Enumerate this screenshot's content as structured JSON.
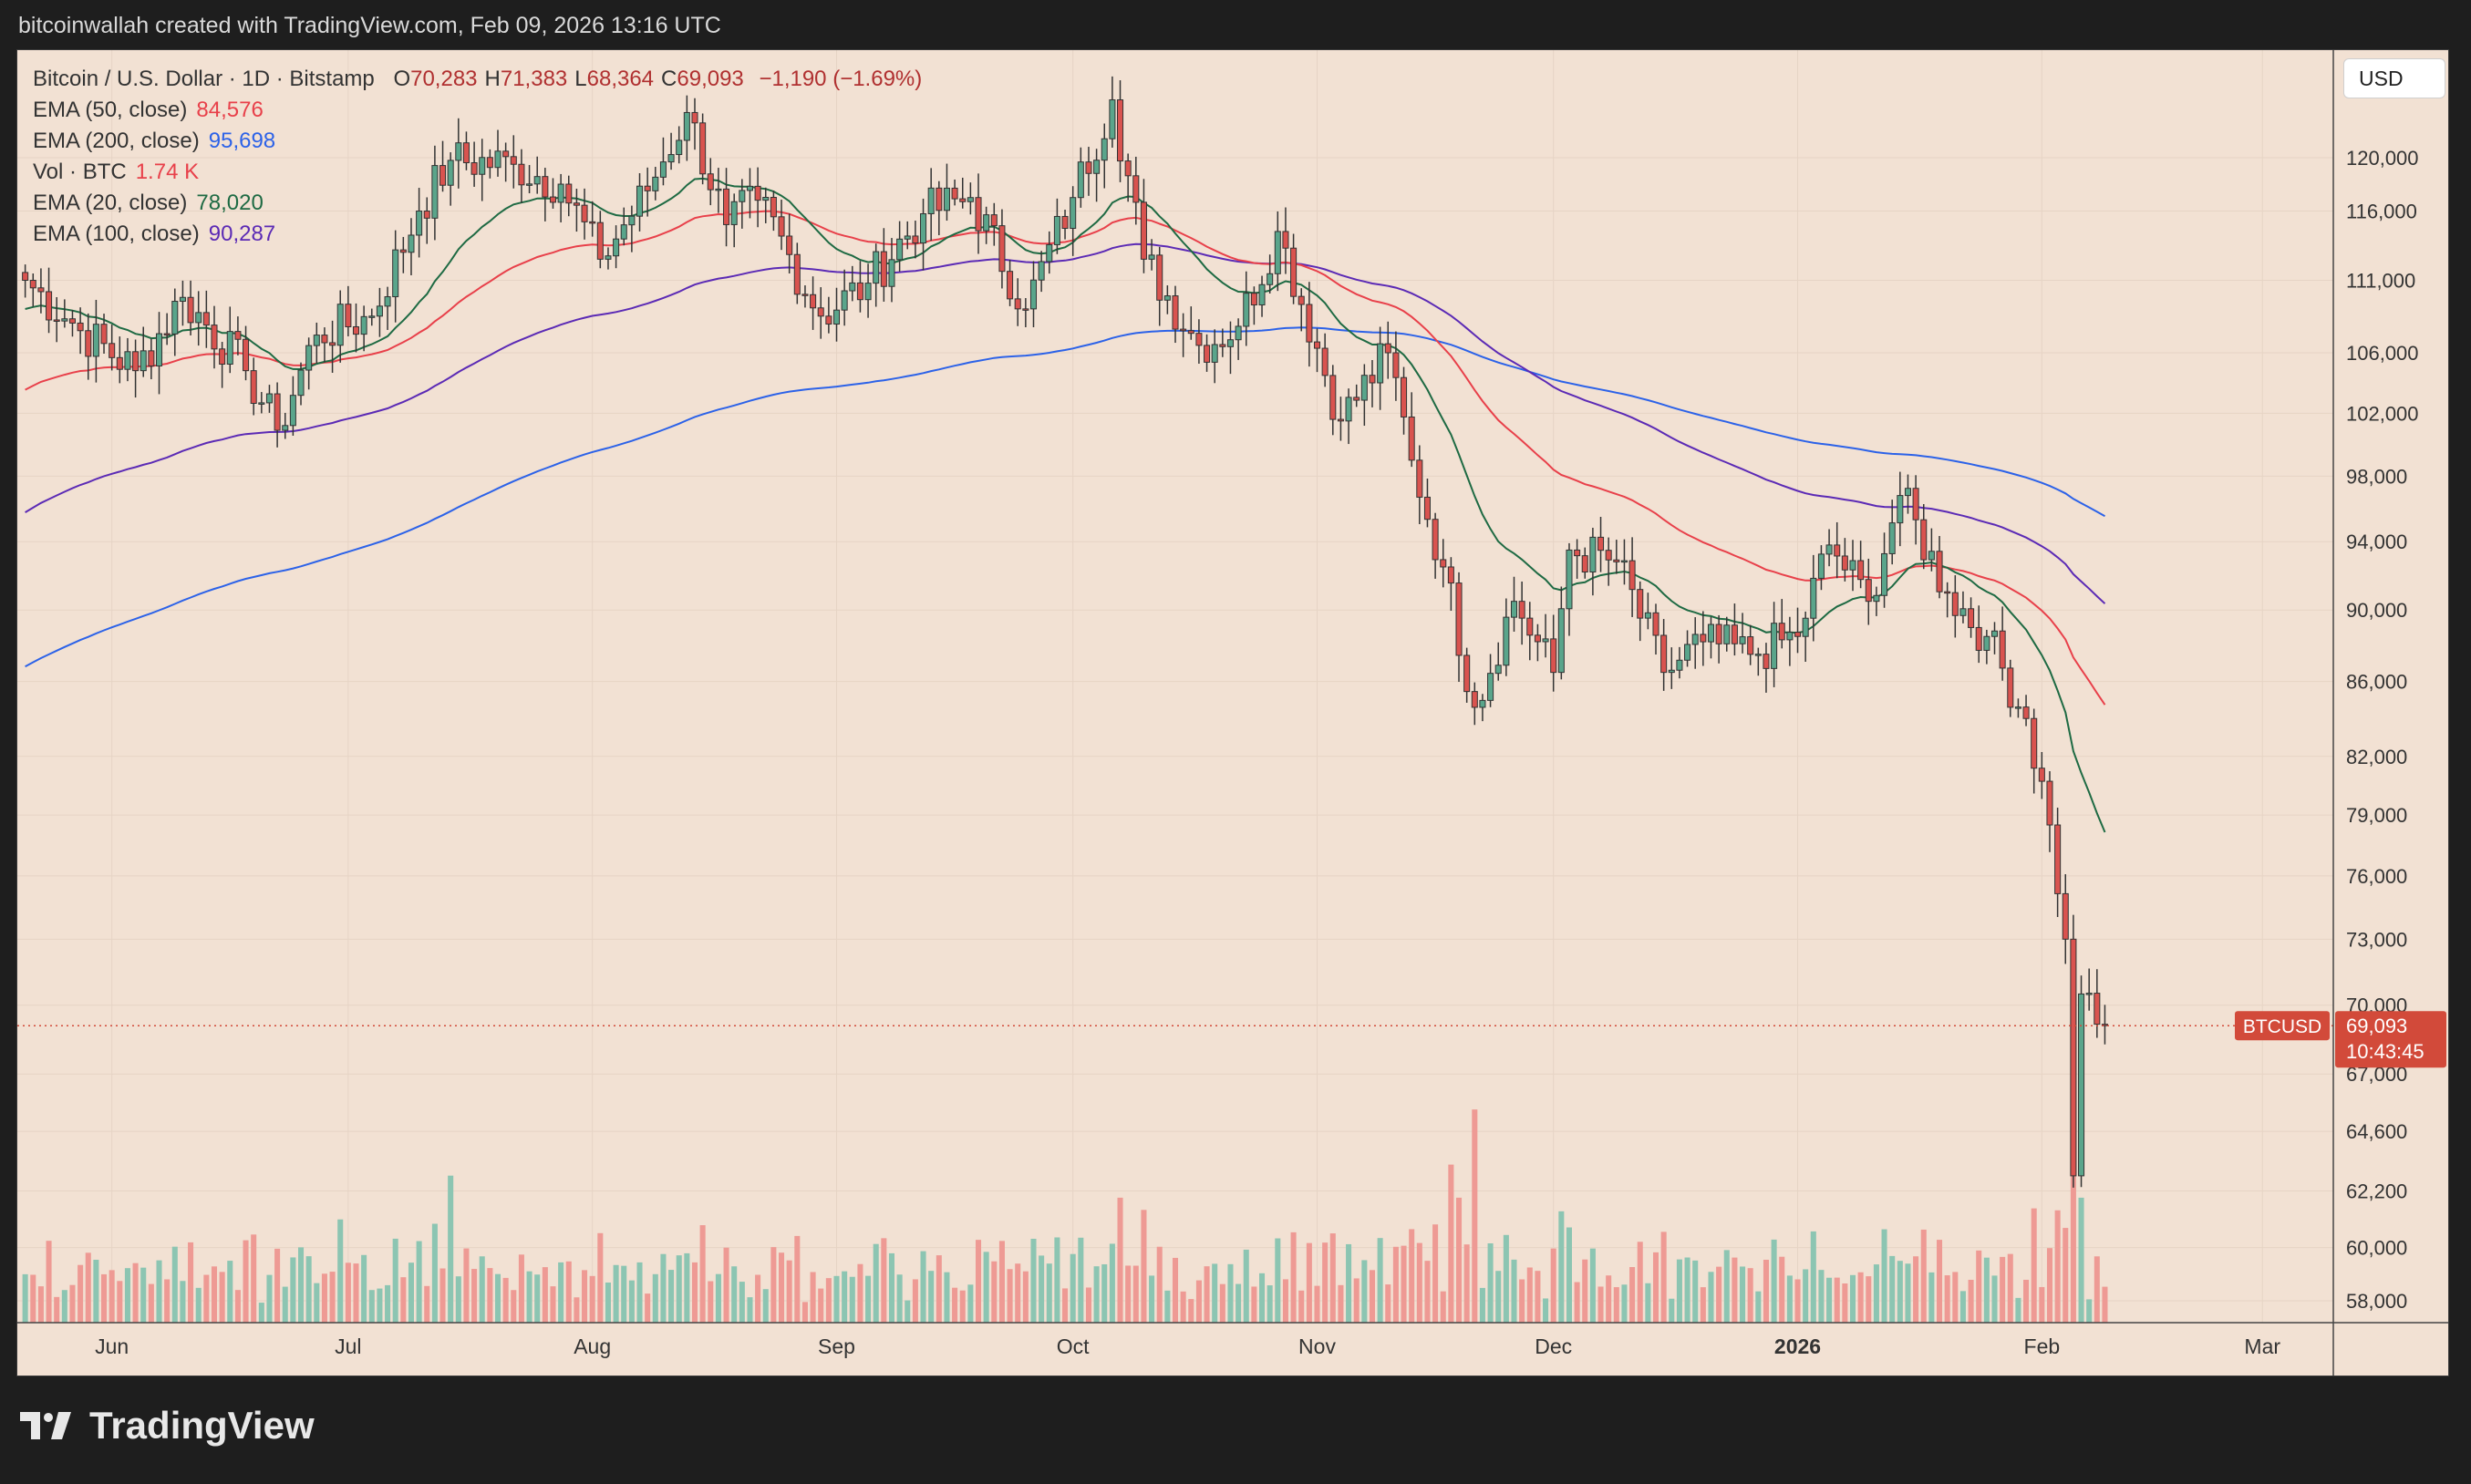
{
  "header": {
    "attribution": "bitcoinwallah created with TradingView.com, Feb 09, 2026 13:16 UTC"
  },
  "legend": {
    "symbol": "Bitcoin / U.S. Dollar · 1D · Bitstamp",
    "ohlc": [
      {
        "label": "O",
        "value": "70,283"
      },
      {
        "label": "H",
        "value": "71,383"
      },
      {
        "label": "L",
        "value": "68,364"
      },
      {
        "label": "C",
        "value": "69,093"
      }
    ],
    "change": "−1,190 (−1.69%)",
    "indicators": [
      {
        "name": "EMA (50, close)",
        "value": "84,576",
        "color": "#e8404a"
      },
      {
        "name": "EMA (200, close)",
        "value": "95,698",
        "color": "#2c62e8"
      },
      {
        "name": "Vol · BTC",
        "value": "1.74 K",
        "color": "#e8404a"
      },
      {
        "name": "EMA (20, close)",
        "value": "78,020",
        "color": "#1e6a43"
      },
      {
        "name": "EMA (100, close)",
        "value": "90,287",
        "color": "#5b2ab5"
      }
    ]
  },
  "currency_button": "USD",
  "price_label": {
    "symbol": "BTCUSD",
    "price": "69,093",
    "countdown": "10:43:45"
  },
  "brand": {
    "name": "TradingView"
  },
  "colors": {
    "up": "#5aa58b",
    "down": "#d9534f",
    "background": "#f2e1d3",
    "ema20": "#1e6a43",
    "ema50": "#e8404a",
    "ema100": "#5b2ab5",
    "ema200": "#2c62e8"
  },
  "chart_data": {
    "type": "candlestick",
    "y_scale": "log",
    "y_ticks": [
      "58,000",
      "60,000",
      "62,200",
      "64,600",
      "67,000",
      "70,000",
      "73,000",
      "76,000",
      "79,000",
      "82,000",
      "86,000",
      "90,000",
      "94,000",
      "98,000",
      "102,000",
      "106,000",
      "111,000",
      "116,000",
      "120,000"
    ],
    "x_ticks": [
      {
        "label": "Jun",
        "date": "2025-06-01"
      },
      {
        "label": "Jul",
        "date": "2025-07-01"
      },
      {
        "label": "Aug",
        "date": "2025-08-01"
      },
      {
        "label": "Sep",
        "date": "2025-09-01"
      },
      {
        "label": "Oct",
        "date": "2025-10-01"
      },
      {
        "label": "Nov",
        "date": "2025-11-01"
      },
      {
        "label": "Dec",
        "date": "2025-12-01"
      },
      {
        "label": "2026",
        "date": "2026-01-01",
        "bold": true
      },
      {
        "label": "Feb",
        "date": "2026-02-01"
      },
      {
        "label": "Mar",
        "date": "2026-03-01"
      }
    ],
    "close_anchors": [
      {
        "date": "2025-05-21",
        "close": 111000
      },
      {
        "date": "2025-05-28",
        "close": 107500
      },
      {
        "date": "2025-06-04",
        "close": 104800
      },
      {
        "date": "2025-06-10",
        "close": 109800
      },
      {
        "date": "2025-06-18",
        "close": 104800
      },
      {
        "date": "2025-06-22",
        "close": 100900
      },
      {
        "date": "2025-06-27",
        "close": 107200
      },
      {
        "date": "2025-07-04",
        "close": 108500
      },
      {
        "date": "2025-07-10",
        "close": 116000
      },
      {
        "date": "2025-07-14",
        "close": 119800
      },
      {
        "date": "2025-07-22",
        "close": 119500
      },
      {
        "date": "2025-07-28",
        "close": 118000
      },
      {
        "date": "2025-08-02",
        "close": 112500
      },
      {
        "date": "2025-08-08",
        "close": 117500
      },
      {
        "date": "2025-08-13",
        "close": 123500
      },
      {
        "date": "2025-08-18",
        "close": 115000
      },
      {
        "date": "2025-08-22",
        "close": 116800
      },
      {
        "date": "2025-08-30",
        "close": 108500
      },
      {
        "date": "2025-09-05",
        "close": 110800
      },
      {
        "date": "2025-09-12",
        "close": 115800
      },
      {
        "date": "2025-09-18",
        "close": 117000
      },
      {
        "date": "2025-09-25",
        "close": 109000
      },
      {
        "date": "2025-10-01",
        "close": 117000
      },
      {
        "date": "2025-10-06",
        "close": 124500
      },
      {
        "date": "2025-10-10",
        "close": 112500
      },
      {
        "date": "2025-10-17",
        "close": 106500
      },
      {
        "date": "2025-10-22",
        "close": 107800
      },
      {
        "date": "2025-10-27",
        "close": 114500
      },
      {
        "date": "2025-11-04",
        "close": 101500
      },
      {
        "date": "2025-11-10",
        "close": 106000
      },
      {
        "date": "2025-11-13",
        "close": 99000
      },
      {
        "date": "2025-11-17",
        "close": 92500
      },
      {
        "date": "2025-11-21",
        "close": 84600
      },
      {
        "date": "2025-11-26",
        "close": 90500
      },
      {
        "date": "2025-12-01",
        "close": 86500
      },
      {
        "date": "2025-12-03",
        "close": 93500
      },
      {
        "date": "2025-12-09",
        "close": 92800
      },
      {
        "date": "2025-12-15",
        "close": 86500
      },
      {
        "date": "2025-12-20",
        "close": 88200
      },
      {
        "date": "2025-12-26",
        "close": 87500
      },
      {
        "date": "2026-01-01",
        "close": 88500
      },
      {
        "date": "2026-01-05",
        "close": 93800
      },
      {
        "date": "2026-01-10",
        "close": 90500
      },
      {
        "date": "2026-01-14",
        "close": 96800
      },
      {
        "date": "2026-01-20",
        "close": 91000
      },
      {
        "date": "2026-01-25",
        "close": 88500
      },
      {
        "date": "2026-01-30",
        "close": 84000
      },
      {
        "date": "2026-02-02",
        "close": 78500
      },
      {
        "date": "2026-02-04",
        "close": 73000
      },
      {
        "date": "2026-02-05",
        "close": 62800
      },
      {
        "date": "2026-02-06",
        "close": 70500
      },
      {
        "date": "2026-02-09",
        "close": 69093
      }
    ],
    "ema_end_values": {
      "ema20": 78020,
      "ema50": 84576,
      "ema100": 90287,
      "ema200": 95698
    },
    "volume_peaks": [
      {
        "date": "2025-11-21",
        "volume": 5.8
      },
      {
        "date": "2025-07-14",
        "volume": 4.0
      },
      {
        "date": "2025-11-18",
        "volume": 4.3
      },
      {
        "date": "2026-02-05",
        "volume": 4.5
      }
    ]
  }
}
